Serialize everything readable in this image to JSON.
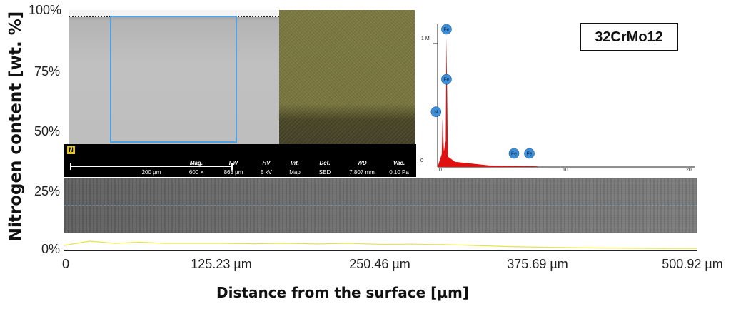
{
  "chart_data": {
    "type": "line",
    "title": "",
    "xlabel": "Distance from the surface [µm]",
    "ylabel": "Nitrogen content [wt. %]",
    "x_ticks": [
      "0",
      "125.23 µm",
      "250.46 µm",
      "375.69 µm",
      "500.92 µm"
    ],
    "y_ticks": [
      "100%",
      "75%",
      "50%",
      "25%",
      "0%"
    ],
    "xlim": [
      0,
      500.92
    ],
    "ylim": [
      0,
      100
    ],
    "grid": false,
    "series": [
      {
        "x": [
          0,
          10,
          20,
          40,
          60,
          80,
          100,
          125.23,
          150,
          175,
          200,
          225,
          250.46,
          275,
          300,
          325,
          350,
          375.69,
          400,
          425,
          450,
          475,
          500.92
        ],
        "values": [
          2,
          3,
          4,
          3,
          3.5,
          3,
          3,
          3,
          2.8,
          3,
          2.7,
          3,
          2.5,
          2.6,
          2.4,
          2,
          1.5,
          1.2,
          1,
          0.8,
          0.7,
          0.6,
          0.6
        ],
        "color": "#e8e34a"
      }
    ]
  },
  "material_label": "32CrMo12",
  "sem_image": {
    "element_badge": "N",
    "scale_bar": "200 µm",
    "fields": [
      {
        "key": "Mag.",
        "value": "600 ×"
      },
      {
        "key": "FW",
        "value": "863 µm"
      },
      {
        "key": "HV",
        "value": "5 kV"
      },
      {
        "key": "Int.",
        "value": "Map"
      },
      {
        "key": "Det.",
        "value": "SED"
      },
      {
        "key": "WD",
        "value": "7.807 mm"
      },
      {
        "key": "Vac.",
        "value": "0.10 Pa"
      }
    ]
  },
  "spectrum": {
    "y_labels": [
      "1 M",
      "0"
    ],
    "x_labels": [
      "0",
      "10",
      "20"
    ],
    "peaks": [
      {
        "element": "Fe",
        "energy_keV": 0.71,
        "relative_height": 1.0
      },
      {
        "element": "Fe",
        "energy_keV": 0.71,
        "relative_height": 0.62
      },
      {
        "element": "N",
        "energy_keV": 0.39,
        "relative_height": 0.37
      },
      {
        "element": "Fe",
        "energy_keV": 6.4,
        "relative_height": 0.02
      },
      {
        "element": "Fe",
        "energy_keV": 7.06,
        "relative_height": 0.02
      }
    ],
    "peak_color": "#e01010",
    "label_color": "#3e8fd8"
  },
  "colors": {
    "roi_border": "#4da3e6",
    "line_scan": "#e8e34a",
    "element_badge": "#e3c920"
  }
}
